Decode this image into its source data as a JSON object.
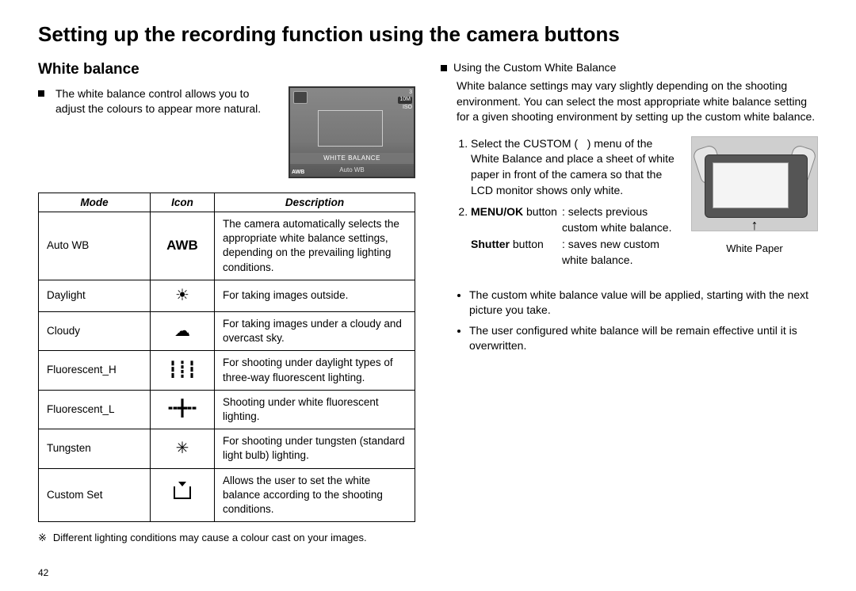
{
  "title": "Setting up the recording function using the camera buttons",
  "page_number": "42",
  "left": {
    "subtitle": "White balance",
    "intro": "The white balance control allows you to adjust the colours to appear more natural.",
    "preview": {
      "bar1": "WHITE BALANCE",
      "bar2": "Auto WB",
      "left_strip": "AWB",
      "right_strip_top": "3",
      "right_strip_mid": "10M",
      "right_strip_bot": "ISO"
    },
    "table": {
      "headers": {
        "mode": "Mode",
        "icon": "Icon",
        "description": "Description"
      },
      "rows": [
        {
          "mode": "Auto WB",
          "icon": "AWB",
          "icon_is_text": true,
          "description": "The camera automatically selects the appropriate white balance settings, depending on the prevailing lighting conditions."
        },
        {
          "mode": "Daylight",
          "icon": "☀",
          "description": "For taking images outside."
        },
        {
          "mode": "Cloudy",
          "icon": "☁",
          "description": "For taking images under a cloudy and overcast sky."
        },
        {
          "mode": "Fluorescent_H",
          "icon": "┇┋┇",
          "description": "For shooting under daylight types of three-way fluorescent lighting."
        },
        {
          "mode": "Fluorescent_L",
          "icon": "╍╋╍",
          "description": "Shooting under white fluorescent lighting."
        },
        {
          "mode": "Tungsten",
          "icon": "✳",
          "description": "For shooting under tungsten (standard light bulb) lighting."
        },
        {
          "mode": "Custom Set",
          "icon": "CUSTOM",
          "description": "Allows the user to set the white balance according to the shooting conditions."
        }
      ]
    },
    "note_symbol": "※",
    "note": "Different lighting conditions may cause a colour cast on your images."
  },
  "right": {
    "heading": "Using the Custom White Balance",
    "para": "White balance settings may vary slightly depending on the shooting environment. You can select the most appropriate white balance setting for a given shooting environment by setting up the custom white balance.",
    "step1": "Select the CUSTOM (   ) menu of the White Balance and place a sheet of white paper in front of the camera so that the LCD monitor shows only white.",
    "step2_lead_bold": "MENU/OK",
    "step2_lead_rest": " button",
    "step2_desc": ": selects previous custom white balance.",
    "step2b_bold": "Shutter",
    "step2b_rest": " button",
    "step2b_desc": ": saves new custom white balance.",
    "diagram_caption": "White Paper",
    "bullets": [
      "The custom white balance value will be applied, starting with the next picture you take.",
      "The user configured white balance will be remain effective until it is overwritten."
    ]
  }
}
